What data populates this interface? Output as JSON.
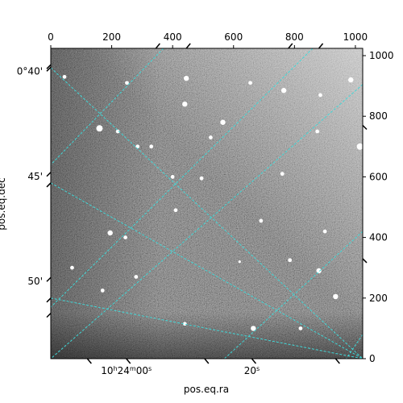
{
  "chart_data": {
    "type": "image",
    "title": "",
    "xlabel": "pos.eq.ra",
    "ylabel": "pos.eq.dec",
    "pixel_axes": {
      "x": {
        "range": [
          0,
          1024
        ],
        "ticks": [
          0,
          200,
          400,
          600,
          800,
          1000
        ],
        "position": "top"
      },
      "y": {
        "range": [
          0,
          1024
        ],
        "ticks": [
          0,
          200,
          400,
          600,
          800,
          1000
        ],
        "position": "right"
      }
    },
    "world_axes": {
      "ra_ticks": [
        {
          "h": "10",
          "m": "24",
          "s": "00",
          "pos": [
            248,
            0
          ],
          "label_parts": [
            "10",
            "h",
            "24",
            "m",
            "00",
            "s"
          ]
        },
        {
          "s": "20",
          "pos": [
            660,
            0
          ],
          "label_parts": [
            "20",
            "s"
          ]
        }
      ],
      "dec_ticks": [
        {
          "label": "0°40'",
          "pos": [
            0,
            962
          ]
        },
        {
          "label": "45'",
          "pos": [
            0,
            615
          ]
        },
        {
          "label": "50'",
          "pos": [
            0,
            268
          ]
        }
      ]
    },
    "grid": true,
    "grid_color": "#40d8d8",
    "grid_lines": {
      "ra": [
        [
          [
            370,
            1024
          ],
          [
            0,
            640
          ]
        ],
        [
          [
            860,
            1024
          ],
          [
            0,
            170
          ]
        ],
        [
          [
            1024,
            905
          ],
          [
            0,
            0
          ]
        ],
        [
          [
            1024,
            420
          ],
          [
            570,
            0
          ]
        ],
        [
          [
            1024,
            80
          ],
          [
            970,
            0
          ]
        ]
      ],
      "dec": [
        [
          [
            0,
            960
          ],
          [
            1024,
            0
          ]
        ],
        [
          [
            0,
            580
          ],
          [
            1024,
            0
          ]
        ],
        [
          [
            0,
            200
          ],
          [
            1024,
            0
          ]
        ],
        [
          [
            0,
            0
          ],
          [
            1024,
            0
          ]
        ]
      ]
    },
    "stars": [
      {
        "x": 45,
        "y": 930,
        "s": 2
      },
      {
        "x": 160,
        "y": 760,
        "s": 4
      },
      {
        "x": 220,
        "y": 750,
        "s": 2
      },
      {
        "x": 250,
        "y": 910,
        "s": 2
      },
      {
        "x": 445,
        "y": 925,
        "s": 3
      },
      {
        "x": 440,
        "y": 840,
        "s": 3
      },
      {
        "x": 565,
        "y": 780,
        "s": 3
      },
      {
        "x": 525,
        "y": 730,
        "s": 2
      },
      {
        "x": 655,
        "y": 910,
        "s": 2
      },
      {
        "x": 765,
        "y": 885,
        "s": 3
      },
      {
        "x": 885,
        "y": 870,
        "s": 2
      },
      {
        "x": 985,
        "y": 920,
        "s": 3
      },
      {
        "x": 1015,
        "y": 700,
        "s": 4
      },
      {
        "x": 875,
        "y": 750,
        "s": 2
      },
      {
        "x": 400,
        "y": 600,
        "s": 2
      },
      {
        "x": 495,
        "y": 595,
        "s": 2
      },
      {
        "x": 195,
        "y": 415,
        "s": 3
      },
      {
        "x": 245,
        "y": 400,
        "s": 2
      },
      {
        "x": 690,
        "y": 455,
        "s": 2
      },
      {
        "x": 785,
        "y": 325,
        "s": 2
      },
      {
        "x": 880,
        "y": 290,
        "s": 3
      },
      {
        "x": 935,
        "y": 205,
        "s": 3
      },
      {
        "x": 900,
        "y": 420,
        "s": 2
      },
      {
        "x": 665,
        "y": 100,
        "s": 3
      },
      {
        "x": 440,
        "y": 115,
        "s": 2
      },
      {
        "x": 70,
        "y": 300,
        "s": 2
      },
      {
        "x": 280,
        "y": 270,
        "s": 2
      },
      {
        "x": 820,
        "y": 100,
        "s": 2
      },
      {
        "x": 330,
        "y": 700,
        "s": 2
      },
      {
        "x": 285,
        "y": 700,
        "s": 2
      },
      {
        "x": 620,
        "y": 320,
        "s": 1
      },
      {
        "x": 170,
        "y": 225,
        "s": 2
      },
      {
        "x": 760,
        "y": 610,
        "s": 2
      },
      {
        "x": 410,
        "y": 490,
        "s": 2
      }
    ]
  }
}
